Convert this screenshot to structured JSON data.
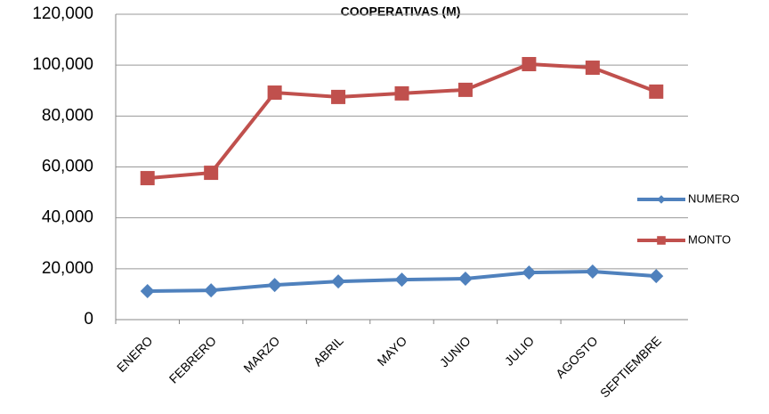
{
  "chart_data": {
    "type": "line",
    "title": "COOPERATIVAS (M)",
    "categories": [
      "ENERO",
      "FEBRERO",
      "MARZO",
      "ABRIL",
      "MAYO",
      "JUNIO",
      "JULIO",
      "AGOSTO",
      "SEPTIEMBRE"
    ],
    "series": [
      {
        "name": "NUMERO",
        "color": "#4f81bd",
        "marker": "diamond",
        "values": [
          11200,
          11500,
          13600,
          15000,
          15700,
          16100,
          18500,
          18900,
          17100
        ]
      },
      {
        "name": "MONTO",
        "color": "#c0504d",
        "marker": "square",
        "values": [
          55600,
          57700,
          89200,
          87500,
          88900,
          90300,
          100400,
          99000,
          89600
        ]
      }
    ],
    "ylim": [
      0,
      120000
    ],
    "yticks": [
      0,
      {
        "value": 20000,
        "label": "20,000"
      },
      {
        "value": 40000,
        "label": "40,000"
      },
      {
        "value": 60000,
        "label": "60,000"
      },
      {
        "value": 80000,
        "label": "80,000"
      },
      {
        "value": 100000,
        "label": "100,000"
      },
      {
        "value": 120000,
        "label": "120,000"
      }
    ],
    "grid": true,
    "legend": "right"
  }
}
